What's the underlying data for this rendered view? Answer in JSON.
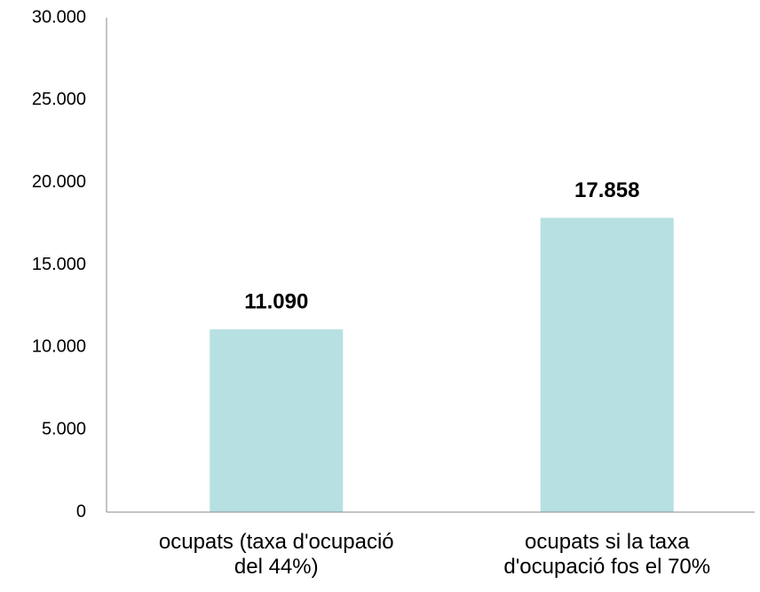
{
  "chart_data": {
    "type": "bar",
    "categories": [
      "ocupats (taxa d'ocupació del 44%)",
      "ocupats si la taxa d'ocupació fos el 70%"
    ],
    "values": [
      11090,
      17858
    ],
    "value_labels": [
      "11.090",
      "17.858"
    ],
    "color": "#b7e0e2",
    "ylim": [
      0,
      30000
    ],
    "yticks": [
      0,
      {
        "value": 5000,
        "label": "5.000"
      },
      {
        "value": 10000,
        "label": "10.000"
      },
      {
        "value": 15000,
        "label": "15.000"
      },
      {
        "value": 20000,
        "label": "20.000"
      },
      {
        "value": 25000,
        "label": "25.000"
      },
      {
        "value": 30000,
        "label": "30.000"
      }
    ],
    "grid": false
  }
}
